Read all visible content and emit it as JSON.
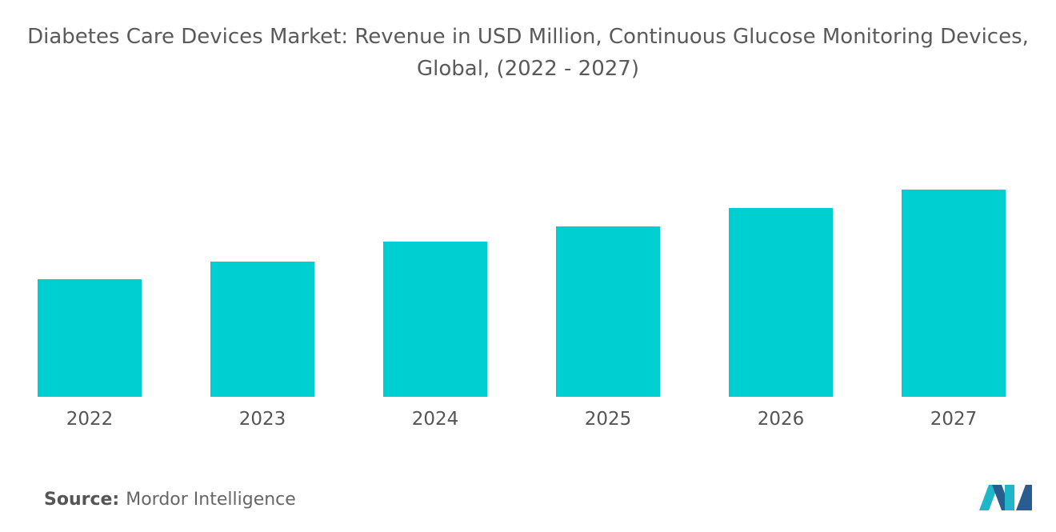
{
  "chart_data": {
    "type": "bar",
    "title": "Diabetes Care Devices Market: Revenue in USD Million, Continuous Glucose Monitoring Devices, Global, (2022 - 2027)",
    "categories": [
      "2022",
      "2023",
      "2024",
      "2025",
      "2026",
      "2027"
    ],
    "values": [
      147,
      169,
      194,
      213,
      236,
      259
    ],
    "color": "#00cfd1"
  },
  "source": {
    "label": "Source:",
    "text": "Mordor Intelligence"
  }
}
